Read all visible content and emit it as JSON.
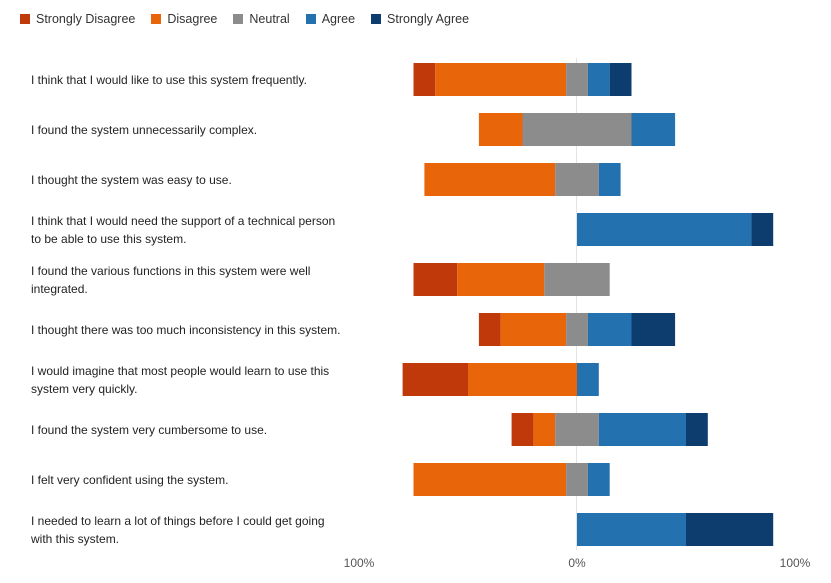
{
  "chart_data": {
    "type": "bar",
    "subtype": "diverging-stacked-100",
    "legend": [
      {
        "name": "Strongly Disagree",
        "color": "#C0390B"
      },
      {
        "name": "Disagree",
        "color": "#E8650A"
      },
      {
        "name": "Neutral",
        "color": "#8C8C8C"
      },
      {
        "name": "Agree",
        "color": "#2471B0"
      },
      {
        "name": "Strongly Agree",
        "color": "#0C3D6E"
      }
    ],
    "categories": [
      "I think that I would like to use this system frequently.",
      "I found the system unnecessarily complex.",
      "I thought the system was easy to use.",
      "I think that I would need the support of a technical person to be able to use this system.",
      "I found the various functions in this system were well integrated.",
      "I thought there was too much inconsistency in this system.",
      "I would imagine that most people would learn to use this system very quickly.",
      "I found the system very cumbersome to use.",
      "I felt very confident using the system.",
      "I needed to learn a lot of things before I could get going with this system."
    ],
    "series": [
      {
        "name": "Strongly Disagree",
        "values": [
          10,
          0,
          0,
          0,
          20,
          10,
          30,
          10,
          0,
          0
        ]
      },
      {
        "name": "Disagree",
        "values": [
          60,
          20,
          60,
          0,
          40,
          30,
          50,
          10,
          70,
          0
        ]
      },
      {
        "name": "Neutral",
        "values": [
          10,
          50,
          20,
          0,
          30,
          10,
          0,
          20,
          10,
          0
        ]
      },
      {
        "name": "Agree",
        "values": [
          10,
          20,
          10,
          80,
          0,
          20,
          10,
          40,
          10,
          50
        ]
      },
      {
        "name": "Strongly Agree",
        "values": [
          10,
          0,
          0,
          10,
          0,
          20,
          0,
          10,
          0,
          40
        ]
      }
    ],
    "axis": {
      "ticks": [
        "100%",
        "0%",
        "100%"
      ],
      "range": [
        -100,
        100
      ]
    },
    "gridlines": false
  }
}
